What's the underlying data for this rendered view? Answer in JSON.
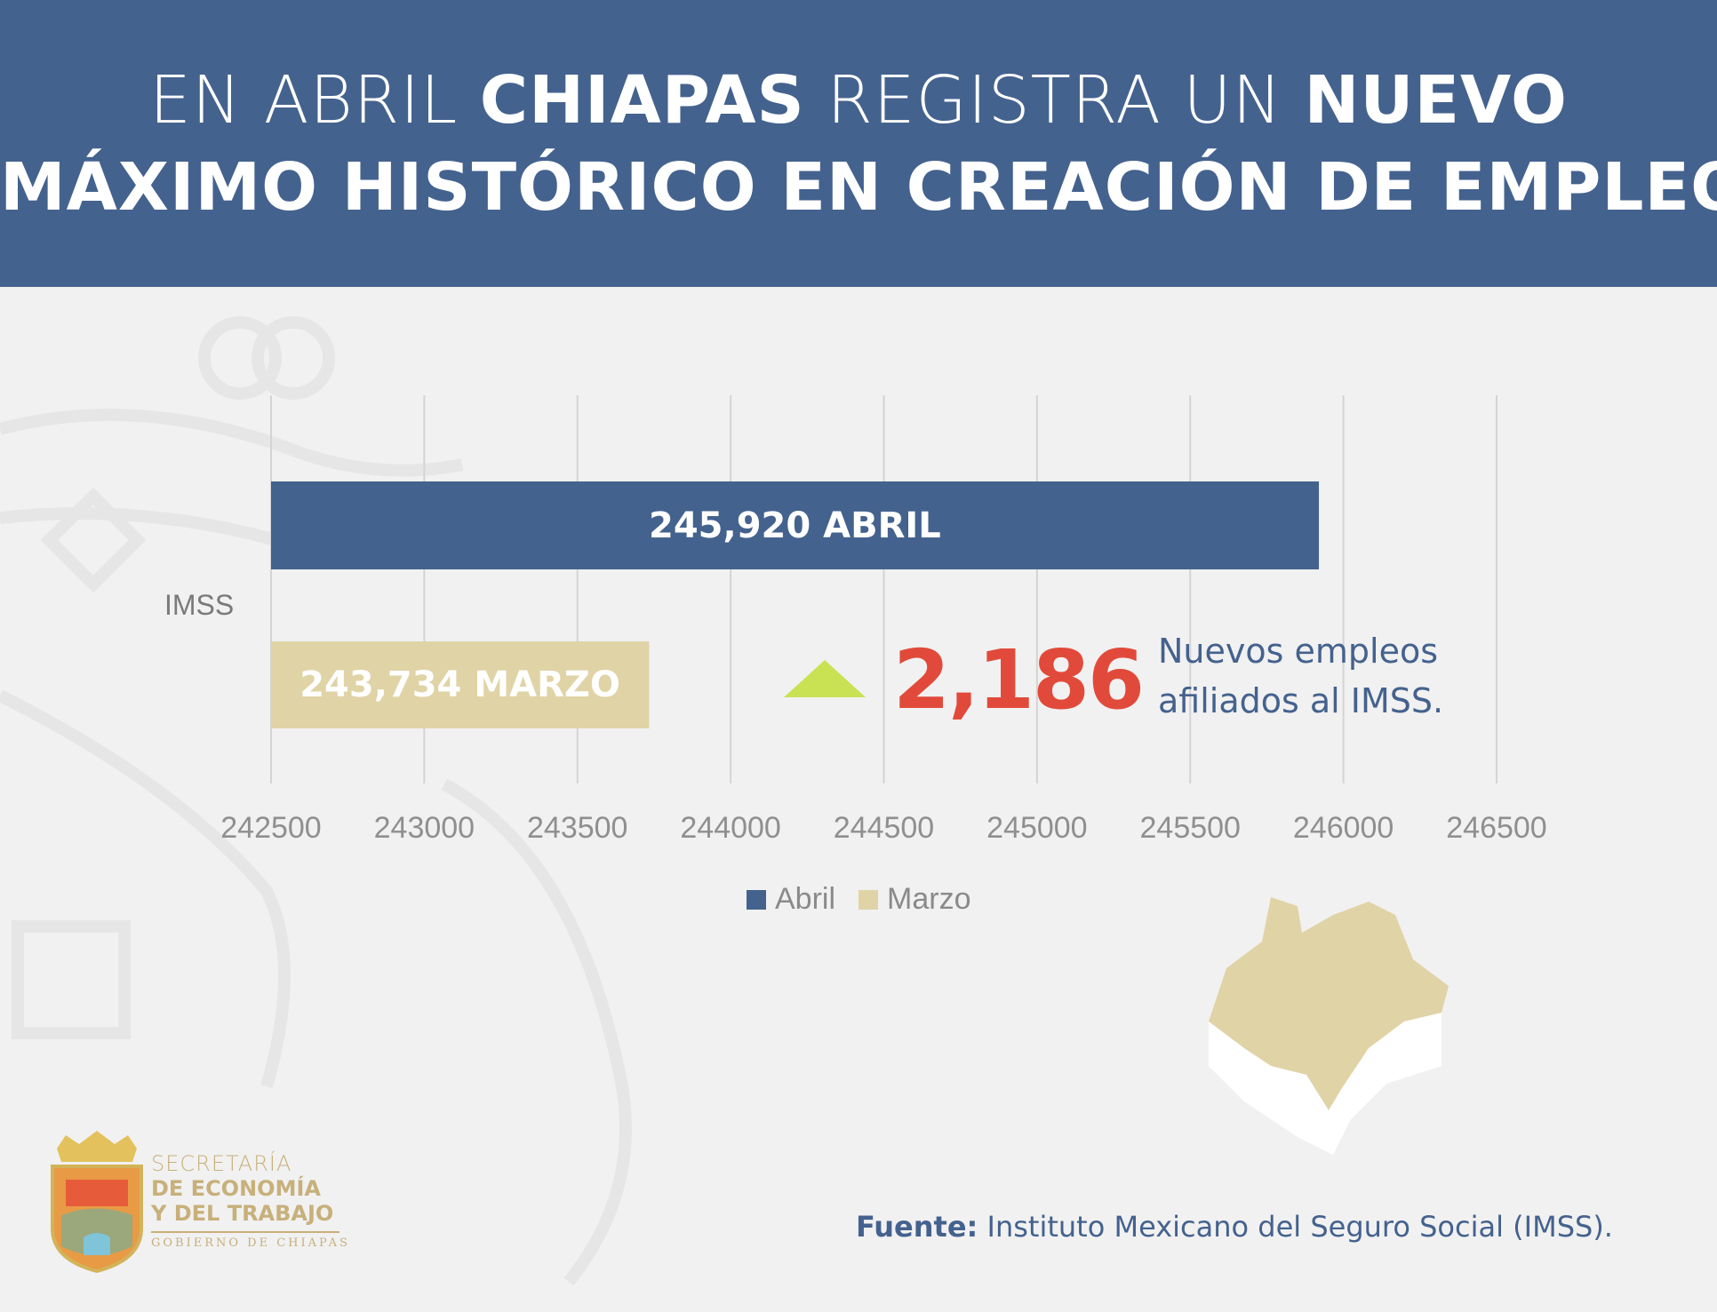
{
  "header": {
    "line1_a": "EN ABRIL ",
    "line1_b": "CHIAPAS",
    "line1_c": " REGISTRA UN ",
    "line1_d": "NUEVO",
    "line2": "MÁXIMO HISTÓRICO EN CREACIÓN DE EMPLEOS"
  },
  "chart_data": {
    "type": "bar",
    "orientation": "horizontal",
    "categories": [
      "IMSS"
    ],
    "series": [
      {
        "name": "Abril",
        "values": [
          245920
        ],
        "color": "#44628e",
        "data_label": "245,920 ABRIL"
      },
      {
        "name": "Marzo",
        "values": [
          243734
        ],
        "color": "#e0d3a6",
        "data_label": "243,734 MARZO"
      }
    ],
    "xlim": [
      242500,
      246500
    ],
    "xticks": [
      242500,
      243000,
      243500,
      244000,
      244500,
      245000,
      245500,
      246000,
      246500
    ],
    "xtick_labels": [
      "242500",
      "243000",
      "243500",
      "244000",
      "244500",
      "245000",
      "245500",
      "246000",
      "246500"
    ],
    "grid": true,
    "legend_position": "bottom"
  },
  "legend": {
    "items": [
      {
        "label": "Abril",
        "color": "#44628e"
      },
      {
        "label": "Marzo",
        "color": "#e0d3a6"
      }
    ]
  },
  "highlight": {
    "arrow_icon": "up-triangle-icon",
    "arrow_color": "#c8e253",
    "value": "2,186",
    "value_color": "#e14a3a",
    "desc_line1": "Nuevos empleos",
    "desc_line2": "afiliados al IMSS."
  },
  "source": {
    "prefix": "Fuente:",
    "text": " Instituto Mexicano del Seguro Social (IMSS)."
  },
  "logo": {
    "line1": "SECRETARÍA",
    "line2": "DE ECONOMÍA",
    "line3": "Y DEL TRABAJO",
    "line4": "GOBIERNO DE CHIAPAS"
  }
}
